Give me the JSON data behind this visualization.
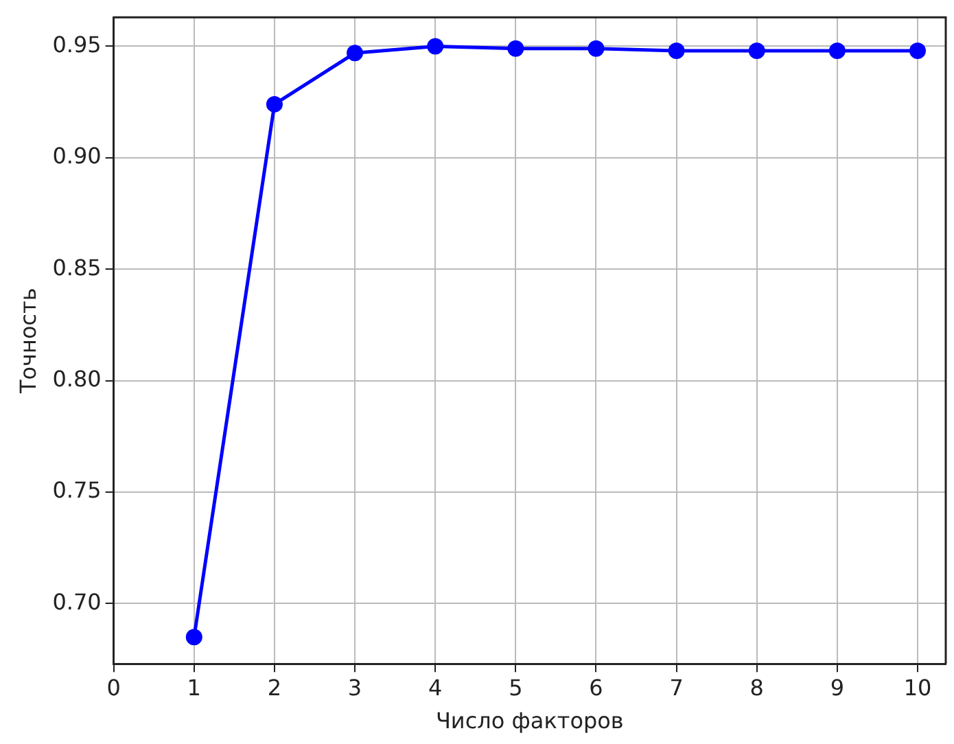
{
  "chart_data": {
    "type": "line",
    "xlabel": "Число факторов",
    "ylabel": "Точность",
    "x": [
      1,
      2,
      3,
      4,
      5,
      6,
      7,
      8,
      9,
      10
    ],
    "series": [
      {
        "color": "#0000ff",
        "values": [
          0.685,
          0.924,
          0.947,
          0.95,
          0.949,
          0.949,
          0.948,
          0.948,
          0.948,
          0.948
        ]
      }
    ],
    "xlim": [
      0,
      10.35
    ],
    "xticks": [
      0,
      1,
      2,
      3,
      4,
      5,
      6,
      7,
      8,
      9,
      10
    ],
    "ylim": [
      0.673,
      0.963
    ],
    "yticks": [
      {
        "value": 0.7,
        "label": "0.70"
      },
      0.75,
      {
        "value": 0.8,
        "label": "0.80"
      },
      0.85,
      {
        "value": 0.9,
        "label": "0.90"
      },
      0.95
    ],
    "grid": true,
    "marker": "circle",
    "line_style": "solid",
    "legend": false
  }
}
